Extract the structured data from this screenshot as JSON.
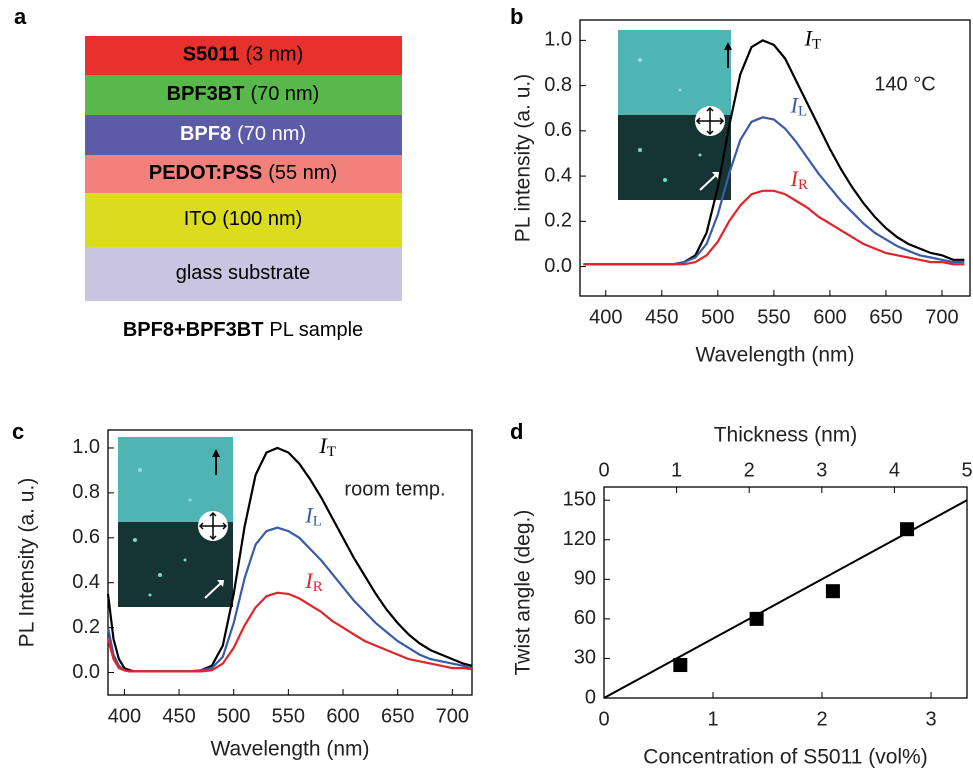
{
  "panel_labels": [
    "a",
    "b",
    "c",
    "d"
  ],
  "layer_stack": {
    "layers": [
      {
        "bold": "S5011",
        "text": "(3 nm)",
        "color": "#e8312d",
        "text_color": "#000000"
      },
      {
        "bold": "BPF3BT",
        "text": "(70 nm)",
        "color": "#59b84b",
        "text_color": "#000000"
      },
      {
        "bold": "BPF8",
        "text": "(70 nm)",
        "color": "#5b5ba8",
        "text_color": "#ffffff"
      },
      {
        "bold": "PEDOT:PSS",
        "text": "(55 nm)",
        "color": "#f2807b",
        "text_color": "#000000"
      },
      {
        "text": "ITO (100 nm)",
        "color": "#dcdc1e",
        "text_color": "#000000"
      },
      {
        "text": "glass substrate",
        "color": "#c9c5e0",
        "text_color": "#000000"
      }
    ],
    "caption": {
      "bold": "BPF8+BPF3BT",
      "text": "PL sample"
    }
  },
  "chart_data": [
    {
      "type": "line",
      "xlabel": "Wavelength (nm)",
      "ylabel": "PL intensity (a. u.)",
      "annotation": "140 °C",
      "xlim": [
        377,
        725
      ],
      "ylim": [
        -0.13,
        1.09
      ],
      "xticks": [
        400,
        450,
        500,
        550,
        600,
        650,
        700
      ],
      "yticks": [
        {
          "value": 0,
          "label": "0.0"
        },
        {
          "value": 0.2,
          "label": "0.2"
        },
        {
          "value": 0.4,
          "label": "0.4"
        },
        {
          "value": 0.6,
          "label": "0.6"
        },
        {
          "value": 0.8,
          "label": "0.8"
        },
        {
          "value": 1,
          "label": "1.0"
        }
      ],
      "x": [
        380,
        390,
        400,
        410,
        420,
        430,
        440,
        450,
        460,
        470,
        480,
        490,
        500,
        510,
        520,
        530,
        540,
        550,
        560,
        570,
        580,
        590,
        600,
        610,
        620,
        630,
        640,
        650,
        660,
        670,
        680,
        690,
        700,
        710,
        720
      ],
      "series": [
        {
          "name": "IT",
          "color": "#000000",
          "values": [
            0.01,
            0.01,
            0.01,
            0.01,
            0.01,
            0.01,
            0.01,
            0.01,
            0.01,
            0.02,
            0.05,
            0.15,
            0.35,
            0.62,
            0.85,
            0.97,
            1.0,
            0.98,
            0.92,
            0.82,
            0.72,
            0.62,
            0.52,
            0.43,
            0.35,
            0.28,
            0.22,
            0.17,
            0.13,
            0.1,
            0.08,
            0.06,
            0.05,
            0.03,
            0.03
          ]
        },
        {
          "name": "IL",
          "color": "#3a5ba8",
          "values": [
            0.01,
            0.01,
            0.01,
            0.01,
            0.01,
            0.01,
            0.01,
            0.01,
            0.01,
            0.02,
            0.04,
            0.1,
            0.23,
            0.41,
            0.56,
            0.64,
            0.66,
            0.65,
            0.61,
            0.55,
            0.48,
            0.41,
            0.35,
            0.29,
            0.24,
            0.19,
            0.15,
            0.12,
            0.09,
            0.07,
            0.05,
            0.04,
            0.03,
            0.02,
            0.02
          ]
        },
        {
          "name": "IR",
          "color": "#e0252b",
          "values": [
            0.01,
            0.01,
            0.01,
            0.01,
            0.01,
            0.01,
            0.01,
            0.01,
            0.01,
            0.01,
            0.02,
            0.05,
            0.11,
            0.2,
            0.27,
            0.32,
            0.335,
            0.335,
            0.32,
            0.29,
            0.26,
            0.22,
            0.19,
            0.16,
            0.13,
            0.1,
            0.08,
            0.06,
            0.05,
            0.04,
            0.03,
            0.02,
            0.02,
            0.01,
            0.01
          ]
        }
      ]
    },
    {
      "type": "line",
      "xlabel": "Wavelength (nm)",
      "ylabel": "PL Intensity (a. u.)",
      "annotation": "room temp.",
      "xlim": [
        385,
        718
      ],
      "ylim": [
        -0.1,
        1.08
      ],
      "xticks": [
        400,
        450,
        500,
        550,
        600,
        650,
        700
      ],
      "yticks": [
        {
          "value": 0,
          "label": "0.0"
        },
        {
          "value": 0.2,
          "label": "0.2"
        },
        {
          "value": 0.4,
          "label": "0.4"
        },
        {
          "value": 0.6,
          "label": "0.6"
        },
        {
          "value": 0.8,
          "label": "0.8"
        },
        {
          "value": 1,
          "label": "1.0"
        }
      ],
      "x": [
        385,
        390,
        395,
        400,
        405,
        410,
        420,
        430,
        440,
        450,
        460,
        470,
        480,
        490,
        500,
        510,
        520,
        530,
        540,
        550,
        560,
        570,
        580,
        590,
        600,
        610,
        620,
        630,
        640,
        650,
        660,
        670,
        680,
        690,
        700,
        710,
        718
      ],
      "series": [
        {
          "name": "IT",
          "color": "#000000",
          "values": [
            0.35,
            0.15,
            0.06,
            0.02,
            0.01,
            0.005,
            0.005,
            0.005,
            0.005,
            0.005,
            0.005,
            0.01,
            0.03,
            0.12,
            0.35,
            0.65,
            0.88,
            0.98,
            1.0,
            0.98,
            0.93,
            0.86,
            0.78,
            0.69,
            0.6,
            0.51,
            0.43,
            0.35,
            0.28,
            0.22,
            0.17,
            0.13,
            0.1,
            0.08,
            0.06,
            0.04,
            0.03
          ]
        },
        {
          "name": "IL",
          "color": "#3a5ba8",
          "values": [
            0.2,
            0.08,
            0.03,
            0.01,
            0.005,
            0.005,
            0.005,
            0.005,
            0.005,
            0.005,
            0.005,
            0.01,
            0.02,
            0.07,
            0.22,
            0.42,
            0.57,
            0.63,
            0.645,
            0.63,
            0.6,
            0.55,
            0.5,
            0.44,
            0.38,
            0.32,
            0.27,
            0.22,
            0.18,
            0.14,
            0.11,
            0.08,
            0.06,
            0.05,
            0.04,
            0.03,
            0.02
          ]
        },
        {
          "name": "IR",
          "color": "#e0252b",
          "values": [
            0.15,
            0.06,
            0.02,
            0.01,
            0.005,
            0.005,
            0.005,
            0.005,
            0.005,
            0.005,
            0.005,
            0.005,
            0.01,
            0.04,
            0.11,
            0.21,
            0.29,
            0.34,
            0.355,
            0.35,
            0.33,
            0.3,
            0.27,
            0.23,
            0.2,
            0.17,
            0.14,
            0.12,
            0.1,
            0.08,
            0.06,
            0.05,
            0.04,
            0.03,
            0.02,
            0.02,
            0.015
          ]
        }
      ]
    },
    {
      "type": "scatter",
      "xlabel": "Concentration of S5011 (vol%)",
      "ylabel": "Twist angle (deg.)",
      "x2label": "Thickness (nm)",
      "xlim": [
        0,
        3.33
      ],
      "ylim": [
        0,
        160
      ],
      "x2lim": [
        0,
        5
      ],
      "xticks": [
        0,
        1,
        2,
        3
      ],
      "yticks": [
        0,
        30,
        60,
        90,
        120,
        150
      ],
      "x2ticks": [
        0,
        1,
        2,
        3,
        4,
        5
      ],
      "color": "#000000",
      "x": [
        0.7,
        1.4,
        2.1,
        2.78
      ],
      "values": [
        25,
        60,
        81,
        128
      ],
      "fit_line": {
        "x": [
          0,
          3.33
        ],
        "y": [
          0,
          150
        ]
      }
    }
  ]
}
